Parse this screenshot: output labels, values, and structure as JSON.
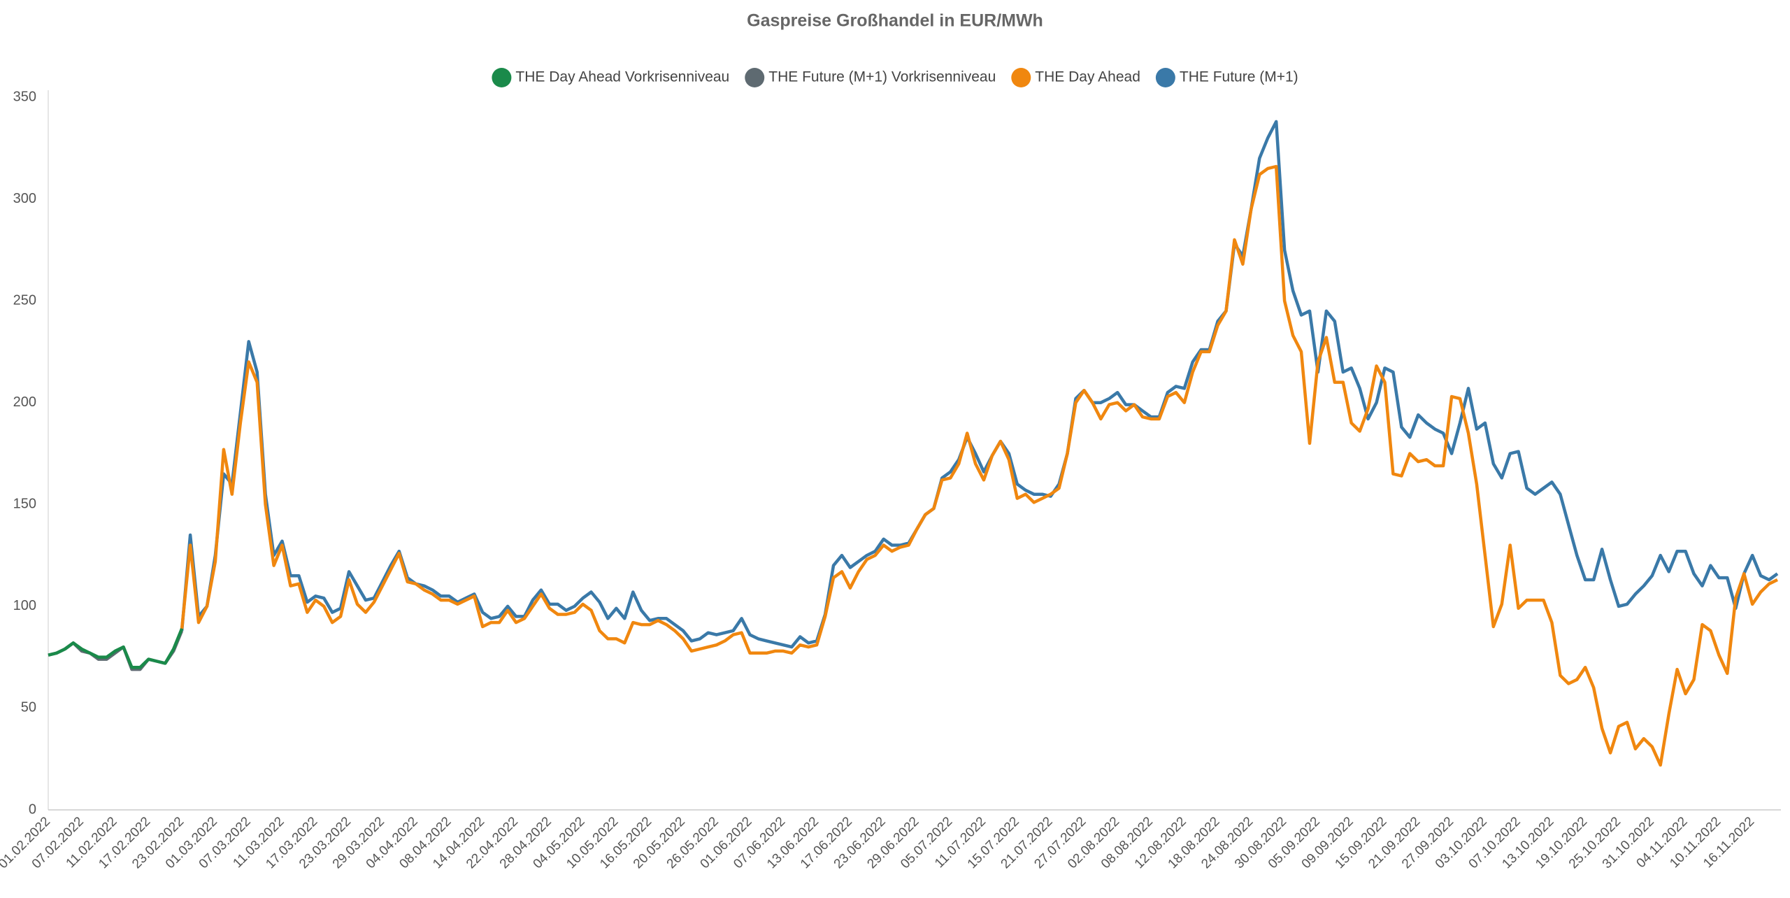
{
  "chart_data": {
    "type": "line",
    "title": "Gaspreise Großhandel in EUR/MWh",
    "categories": [
      "01.02.2022",
      null,
      null,
      null,
      "07.02.2022",
      null,
      null,
      null,
      "11.02.2022",
      null,
      null,
      null,
      "17.02.2022",
      null,
      null,
      null,
      "23.02.2022",
      null,
      null,
      null,
      "01.03.2022",
      null,
      null,
      null,
      "07.03.2022",
      null,
      null,
      null,
      "11.03.2022",
      null,
      null,
      null,
      "17.03.2022",
      null,
      null,
      null,
      "23.03.2022",
      null,
      null,
      null,
      "29.03.2022",
      null,
      null,
      null,
      "04.04.2022",
      null,
      null,
      null,
      "08.04.2022",
      null,
      null,
      null,
      "14.04.2022",
      null,
      null,
      null,
      "22.04.2022",
      null,
      null,
      null,
      "28.04.2022",
      null,
      null,
      null,
      "04.05.2022",
      null,
      null,
      null,
      "10.05.2022",
      null,
      null,
      null,
      "16.05.2022",
      null,
      null,
      null,
      "20.05.2022",
      null,
      null,
      null,
      "26.05.2022",
      null,
      null,
      null,
      "01.06.2022",
      null,
      null,
      null,
      "07.06.2022",
      null,
      null,
      null,
      "13.06.2022",
      null,
      null,
      null,
      "17.06.2022",
      null,
      null,
      null,
      "23.06.2022",
      null,
      null,
      null,
      "29.06.2022",
      null,
      null,
      null,
      "05.07.2022",
      null,
      null,
      null,
      "11.07.2022",
      null,
      null,
      null,
      "15.07.2022",
      null,
      null,
      null,
      "21.07.2022",
      null,
      null,
      null,
      "27.07.2022",
      null,
      null,
      null,
      "02.08.2022",
      null,
      null,
      null,
      "08.08.2022",
      null,
      null,
      null,
      "12.08.2022",
      null,
      null,
      null,
      "18.08.2022",
      null,
      null,
      null,
      "24.08.2022",
      null,
      null,
      null,
      "30.08.2022",
      null,
      null,
      null,
      "05.09.2022",
      null,
      null,
      null,
      "09.09.2022",
      null,
      null,
      null,
      "15.09.2022",
      null,
      null,
      null,
      "21.09.2022",
      null,
      null,
      null,
      "27.09.2022",
      null,
      null,
      null,
      "03.10.2022",
      null,
      null,
      null,
      "07.10.2022",
      null,
      null,
      null,
      "13.10.2022",
      null,
      null,
      null,
      "19.10.2022",
      null,
      null,
      null,
      "25.10.2022",
      null,
      null,
      null,
      "31.10.2022",
      null,
      null,
      null,
      "04.11.2022",
      null,
      null,
      null,
      "10.11.2022",
      null,
      null,
      null,
      "16.11.2022",
      null,
      null,
      null
    ],
    "series": [
      {
        "name": "THE Day Ahead Vorkrisenniveau",
        "color": "#1a8a4a",
        "values": [
          76,
          77,
          79,
          82,
          79,
          77,
          75,
          75,
          78,
          80,
          70,
          70,
          74,
          73,
          72,
          79,
          89,
          null,
          null,
          null,
          null,
          null,
          null,
          null,
          null,
          null,
          null,
          null,
          null,
          null,
          null,
          null,
          null,
          null,
          null,
          null,
          null,
          null,
          null,
          null,
          null,
          null,
          null,
          null,
          null,
          null,
          null,
          null,
          null,
          null,
          null,
          null,
          null,
          null,
          null,
          null,
          null,
          null,
          null,
          null,
          null,
          null,
          null,
          null,
          null,
          null,
          null,
          null,
          null,
          null,
          null,
          null,
          null,
          null,
          null,
          null,
          null,
          null,
          null,
          null,
          null,
          null,
          null,
          null,
          null,
          null,
          null,
          null,
          null,
          null,
          null,
          null,
          null,
          null,
          null,
          null,
          null,
          null,
          null,
          null,
          null,
          null,
          null,
          null,
          null,
          null,
          null,
          null,
          null,
          null,
          null,
          null,
          null,
          null,
          null,
          null,
          null,
          null,
          null,
          null,
          null,
          null,
          null,
          null,
          null,
          null,
          null,
          null,
          null,
          null,
          null,
          null,
          null,
          null,
          null,
          null,
          null,
          null,
          null,
          null,
          null,
          null,
          null,
          null,
          null,
          null,
          null,
          null,
          null,
          null,
          null,
          null,
          null,
          null,
          null,
          null,
          null,
          null,
          null,
          null,
          null,
          null,
          null,
          null,
          null,
          null,
          null,
          null,
          null,
          null,
          null,
          null,
          null,
          null,
          null,
          null,
          null,
          null,
          null,
          null,
          null,
          null,
          null,
          null,
          null,
          null,
          null,
          null,
          null,
          null,
          null,
          null,
          null,
          null,
          null,
          null,
          null,
          null,
          null,
          null,
          null,
          null,
          null,
          null,
          null,
          null,
          null,
          null
        ]
      },
      {
        "name": "THE Future (M+1) Vorkrisenniveau",
        "color": "#5e6a71",
        "values": [
          76,
          77,
          79,
          82,
          78,
          77,
          74,
          74,
          77,
          80,
          69,
          69,
          74,
          73,
          72,
          78,
          88,
          null,
          null,
          null,
          null,
          null,
          null,
          null,
          null,
          null,
          null,
          null,
          null,
          null,
          null,
          null,
          null,
          null,
          null,
          null,
          null,
          null,
          null,
          null,
          null,
          null,
          null,
          null,
          null,
          null,
          null,
          null,
          null,
          null,
          null,
          null,
          null,
          null,
          null,
          null,
          null,
          null,
          null,
          null,
          null,
          null,
          null,
          null,
          null,
          null,
          null,
          null,
          null,
          null,
          null,
          null,
          null,
          null,
          null,
          null,
          null,
          null,
          null,
          null,
          null,
          null,
          null,
          null,
          null,
          null,
          null,
          null,
          null,
          null,
          null,
          null,
          null,
          null,
          null,
          null,
          null,
          null,
          null,
          null,
          null,
          null,
          null,
          null,
          null,
          null,
          null,
          null,
          null,
          null,
          null,
          null,
          null,
          null,
          null,
          null,
          null,
          null,
          null,
          null,
          null,
          null,
          null,
          null,
          null,
          null,
          null,
          null,
          null,
          null,
          null,
          null,
          null,
          null,
          null,
          null,
          null,
          null,
          null,
          null,
          null,
          null,
          null,
          null,
          null,
          null,
          null,
          null,
          null,
          null,
          null,
          null,
          null,
          null,
          null,
          null,
          null,
          null,
          null,
          null,
          null,
          null,
          null,
          null,
          null,
          null,
          null,
          null,
          null,
          null,
          null,
          null,
          null,
          null,
          null,
          null,
          null,
          null,
          null,
          null,
          null,
          null,
          null,
          null,
          null,
          null,
          null,
          null,
          null,
          null,
          null,
          null,
          null,
          null,
          null,
          null,
          null,
          null,
          null,
          null,
          null,
          null,
          null,
          null,
          null,
          null,
          null,
          null
        ]
      },
      {
        "name": "THE Day Ahead",
        "color": "#f0870f",
        "values": [
          null,
          null,
          null,
          null,
          null,
          null,
          null,
          null,
          null,
          null,
          null,
          null,
          null,
          null,
          null,
          null,
          89,
          130,
          92,
          100,
          122,
          177,
          155,
          190,
          220,
          210,
          150,
          120,
          130,
          110,
          111,
          97,
          103,
          100,
          92,
          95,
          113,
          101,
          97,
          102,
          110,
          118,
          126,
          112,
          111,
          108,
          106,
          103,
          103,
          101,
          103,
          105,
          90,
          92,
          92,
          98,
          92,
          94,
          100,
          106,
          99,
          96,
          96,
          97,
          101,
          98,
          88,
          84,
          84,
          82,
          92,
          91,
          91,
          93,
          91,
          88,
          84,
          78,
          79,
          80,
          81,
          83,
          86,
          87,
          77,
          77,
          77,
          78,
          78,
          77,
          81,
          80,
          81,
          95,
          114,
          117,
          109,
          117,
          123,
          125,
          130,
          127,
          129,
          130,
          138,
          145,
          148,
          162,
          163,
          170,
          185,
          170,
          162,
          174,
          181,
          172,
          153,
          155,
          151,
          153,
          155,
          158,
          175,
          200,
          206,
          200,
          192,
          199,
          200,
          196,
          199,
          193,
          192,
          192,
          203,
          205,
          200,
          215,
          225,
          225,
          238,
          245,
          280,
          268,
          295,
          312,
          315,
          316,
          250,
          233,
          225,
          180,
          220,
          232,
          210,
          210,
          190,
          186,
          197,
          218,
          210,
          165,
          164,
          175,
          171,
          172,
          169,
          169,
          203,
          202,
          185,
          160,
          125,
          90,
          101,
          130,
          99,
          103,
          103,
          103,
          92,
          66,
          62,
          64,
          70,
          60,
          40,
          28,
          41,
          43,
          30,
          35,
          31,
          22,
          47,
          69,
          57,
          64,
          91,
          88,
          76,
          67,
          104,
          116,
          101,
          107,
          111,
          113
        ]
      },
      {
        "name": "THE Future (M+1)",
        "color": "#3a79a8",
        "values": [
          null,
          null,
          null,
          null,
          null,
          null,
          null,
          null,
          null,
          null,
          null,
          null,
          null,
          null,
          null,
          null,
          88,
          135,
          95,
          100,
          125,
          165,
          160,
          195,
          230,
          215,
          155,
          125,
          132,
          115,
          115,
          102,
          105,
          104,
          97,
          99,
          117,
          110,
          103,
          104,
          112,
          120,
          127,
          114,
          111,
          110,
          108,
          105,
          105,
          102,
          104,
          106,
          97,
          94,
          95,
          100,
          95,
          95,
          103,
          108,
          101,
          101,
          98,
          100,
          104,
          107,
          102,
          94,
          99,
          94,
          107,
          98,
          93,
          94,
          94,
          91,
          88,
          83,
          84,
          87,
          86,
          87,
          88,
          94,
          86,
          84,
          83,
          82,
          81,
          80,
          85,
          82,
          83,
          96,
          120,
          125,
          119,
          122,
          125,
          127,
          133,
          130,
          130,
          131,
          138,
          145,
          148,
          163,
          166,
          172,
          183,
          175,
          166,
          174,
          181,
          175,
          160,
          157,
          155,
          155,
          154,
          160,
          175,
          202,
          206,
          200,
          200,
          202,
          205,
          199,
          199,
          196,
          193,
          193,
          205,
          208,
          207,
          220,
          226,
          226,
          240,
          245,
          278,
          272,
          295,
          320,
          330,
          338,
          275,
          255,
          243,
          245,
          215,
          245,
          240,
          215,
          217,
          207,
          192,
          200,
          217,
          215,
          188,
          183,
          194,
          190,
          187,
          185,
          175,
          190,
          207,
          187,
          190,
          170,
          163,
          175,
          176,
          158,
          155,
          158,
          161,
          155,
          140,
          125,
          113,
          113,
          128,
          113,
          100,
          101,
          106,
          110,
          115,
          125,
          117,
          127,
          127,
          116,
          110,
          120,
          114,
          114,
          99,
          116,
          125,
          115,
          113,
          116
        ]
      }
    ],
    "ylim": [
      0,
      350
    ],
    "yticks": [
      0,
      50,
      100,
      150,
      200,
      250,
      300,
      350
    ],
    "grid": false,
    "legend": "top"
  }
}
